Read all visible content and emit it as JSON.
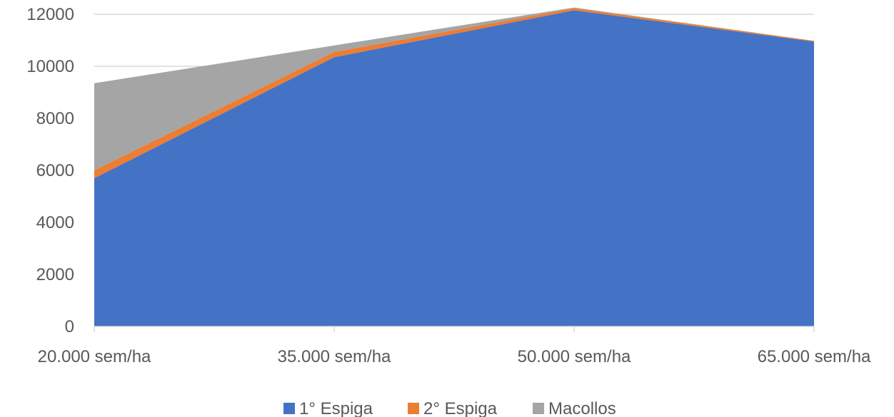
{
  "chart_data": {
    "type": "area",
    "stacked": true,
    "categories": [
      "20.000 sem/ha",
      "35.000 sem/ha",
      "50.000 sem/ha",
      "65.000 sem/ha"
    ],
    "series": [
      {
        "name": "1° Espiga",
        "values": [
          5700,
          10350,
          12150,
          10950
        ],
        "color": "#4472c4"
      },
      {
        "name": "2° Espiga",
        "values": [
          300,
          200,
          80,
          30
        ],
        "color": "#ed7d31"
      },
      {
        "name": "Macollos",
        "values": [
          3350,
          250,
          30,
          0
        ],
        "color": "#a5a5a5"
      }
    ],
    "ylim": [
      0,
      12000
    ],
    "yticks": [
      0,
      2000,
      4000,
      6000,
      8000,
      10000,
      12000
    ],
    "grid": true,
    "legend_position": "bottom"
  }
}
